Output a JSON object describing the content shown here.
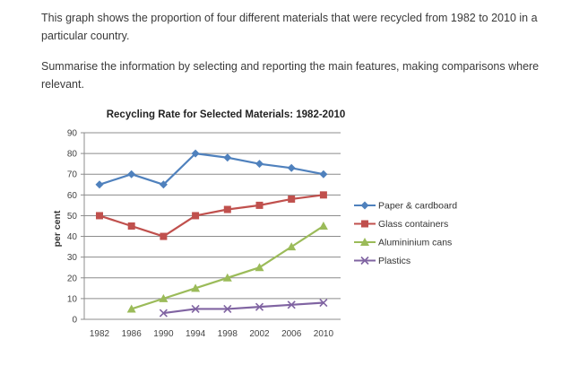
{
  "prompt": {
    "paragraph_1": "This graph shows the proportion of four different materials that were recycled from 1982 to 2010 in a particular country.",
    "paragraph_2": "Summarise the information by selecting and reporting the main features, making comparisons where relevant."
  },
  "chart_data": {
    "type": "line",
    "title": "Recycling Rate for Selected Materials: 1982-2010",
    "xlabel": "",
    "ylabel": "per cent",
    "categories": [
      "1982",
      "1986",
      "1990",
      "1994",
      "1998",
      "2002",
      "2006",
      "2010"
    ],
    "ylim": [
      0,
      90
    ],
    "yticks": [
      0,
      10,
      20,
      30,
      40,
      50,
      60,
      70,
      80,
      90
    ],
    "grid": true,
    "legend_position": "right",
    "series": [
      {
        "name": "Paper & cardboard",
        "color": "#4f81bd",
        "marker": "diamond",
        "values": [
          65,
          70,
          65,
          80,
          78,
          75,
          73,
          70
        ]
      },
      {
        "name": "Glass containers",
        "color": "#c0504d",
        "marker": "square",
        "values": [
          50,
          45,
          40,
          50,
          53,
          55,
          58,
          60
        ]
      },
      {
        "name": "Alumininium cans",
        "color": "#9bbb59",
        "marker": "triangle",
        "values": [
          null,
          5,
          10,
          15,
          20,
          25,
          35,
          45
        ]
      },
      {
        "name": "Plastics",
        "color": "#8064a2",
        "marker": "x",
        "values": [
          null,
          null,
          3,
          5,
          5,
          6,
          7,
          8
        ]
      }
    ]
  }
}
